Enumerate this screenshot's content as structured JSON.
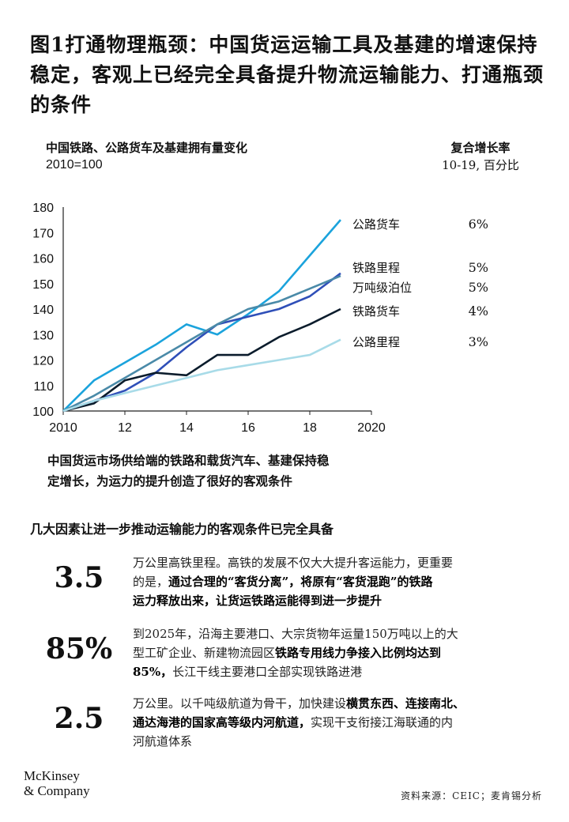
{
  "title": "图1打通物理瓶颈：中国货运运输工具及基建的增速保持稳定，客观上已经完全具备提升物流运输能力、打通瓶颈的条件",
  "chart_header": {
    "left_line1": "中国铁路、公路货车及基建拥有量变化",
    "left_line2": "2010=100",
    "right_line1": "复合增长率",
    "right_line2": "10-19, 百分比"
  },
  "chart_data": {
    "type": "line",
    "x": [
      2010,
      2011,
      2012,
      2013,
      2014,
      2015,
      2016,
      2017,
      2018,
      2019
    ],
    "xlim": [
      2010,
      2020
    ],
    "ylim": [
      100,
      180
    ],
    "xticks": [
      2010,
      2012,
      2014,
      2016,
      2018,
      2020
    ],
    "xtick_labels": [
      "2010",
      "12",
      "14",
      "16",
      "18",
      "2020"
    ],
    "yticks": [
      100,
      110,
      120,
      130,
      140,
      150,
      160,
      170,
      180
    ],
    "grid": false,
    "series": [
      {
        "name": "公路货车",
        "cagr": "6%",
        "color": "#1ba3dc",
        "values": [
          100,
          112,
          119,
          126,
          134,
          130,
          138,
          147,
          161,
          175
        ]
      },
      {
        "name": "铁路里程",
        "cagr": "5%",
        "color": "#2f4fb8",
        "values": [
          100,
          104,
          108,
          115,
          125,
          134,
          137,
          140,
          145,
          154
        ]
      },
      {
        "name": "万吨级泊位",
        "cagr": "5%",
        "color": "#4a8aa8",
        "values": [
          100,
          106,
          113,
          120,
          127,
          134,
          140,
          143,
          148,
          153
        ]
      },
      {
        "name": "铁路货车",
        "cagr": "4%",
        "color": "#0b1c2c",
        "values": [
          100,
          103,
          112,
          115,
          114,
          122,
          122,
          129,
          134,
          140
        ]
      },
      {
        "name": "公路里程",
        "cagr": "3%",
        "color": "#a8dbe8",
        "values": [
          100,
          104,
          107,
          110,
          113,
          116,
          118,
          120,
          122,
          128
        ]
      }
    ]
  },
  "note_line1": "中国货运市场供给端的铁路和载货汽车、基建保持稳",
  "note_line2": "定增长，为运力的提升创造了很好的客观条件",
  "factors_heading": "几大因素让进一步推动运输能力的客观条件已完全具备",
  "factors": [
    {
      "value": "3.5",
      "t1": "万公里高铁里程。高铁的发展不仅大大提升客运能力，更重要",
      "t2a": "的是，",
      "t2b": "通过合理的“客货分离”，将原有“客货混跑”的铁路",
      "t3": "运力释放出来，让货运铁路运能得到进一步提升"
    },
    {
      "value": "85%",
      "t1": "到2025年，沿海主要港口、大宗货物年运量150万吨以上的大",
      "t2a": "型工矿企业、新建物流园区",
      "t2b": "铁路专用线力争接入比例均达到",
      "t3a": "85%，",
      "t3b": "长江干线主要港口全部实现铁路进港"
    },
    {
      "value": "2.5",
      "t1a": "万公里。以千吨级航道为骨干，加快建设",
      "t1b": "横贯东西、连接南北、",
      "t2a": "通达海港的国家高等级内河航道，",
      "t2b": "实现干支衔接江海联通的内",
      "t3": "河航道体系"
    }
  ],
  "logo_line1": "McKinsey",
  "logo_line2": "& Company",
  "source": "资料来源：CEIC；麦肯锡分析"
}
